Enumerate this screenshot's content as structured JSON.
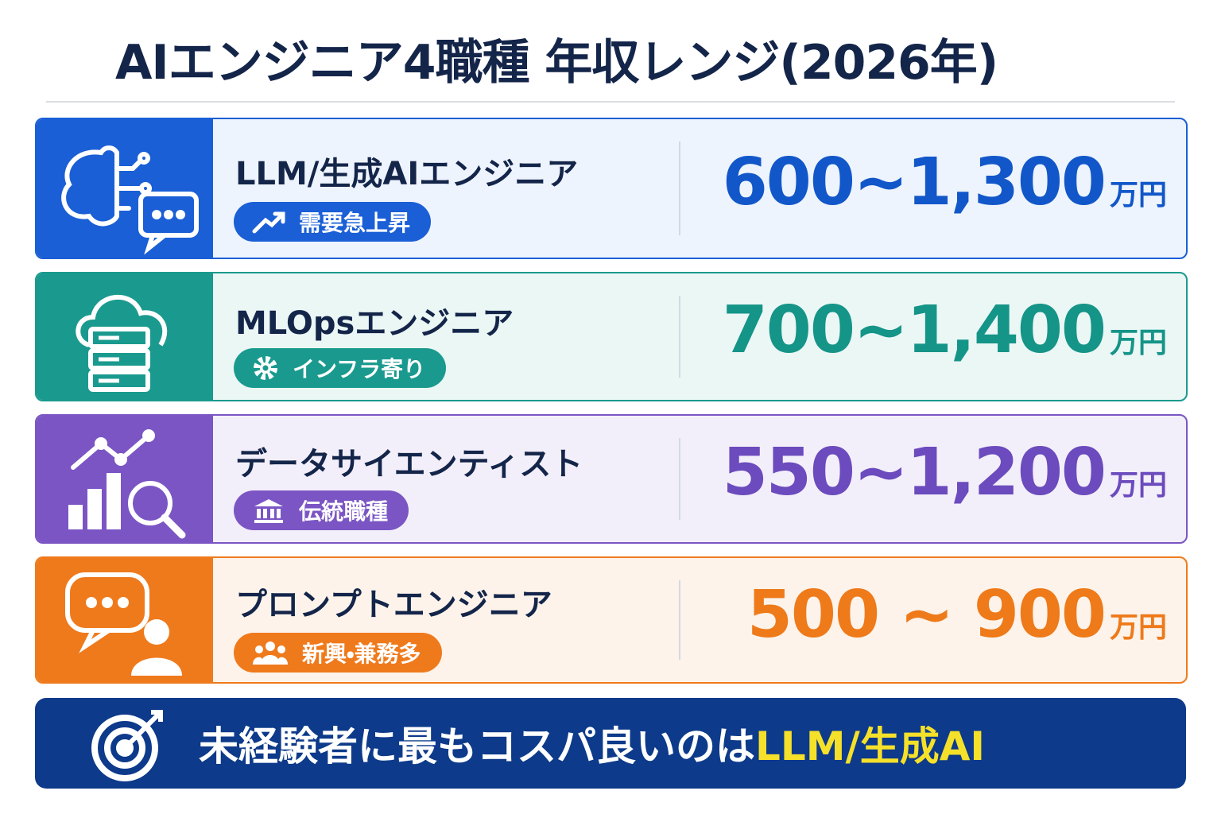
{
  "header": {
    "title": "AIエンジニア4職種 年収レンジ(2026年)"
  },
  "rows": [
    {
      "name": "LLM/生成AIエンジニア",
      "tag": "需要急上昇",
      "range": "600~1,300",
      "unit": "万円"
    },
    {
      "name": "MLOpsエンジニア",
      "tag": "インフラ寄り",
      "range": "700~1,400",
      "unit": "万円"
    },
    {
      "name": "データサイエンティスト",
      "tag": "伝統職種",
      "range": "550~1,200",
      "unit": "万円"
    },
    {
      "name": "プロンプトエンジニア",
      "tag": "新興・兼務多",
      "range": "500 ~ 900",
      "unit": "万円"
    }
  ],
  "footer": {
    "text": "未経験者に最もコスパ良いのは",
    "highlight": "LLM/生成AI"
  }
}
